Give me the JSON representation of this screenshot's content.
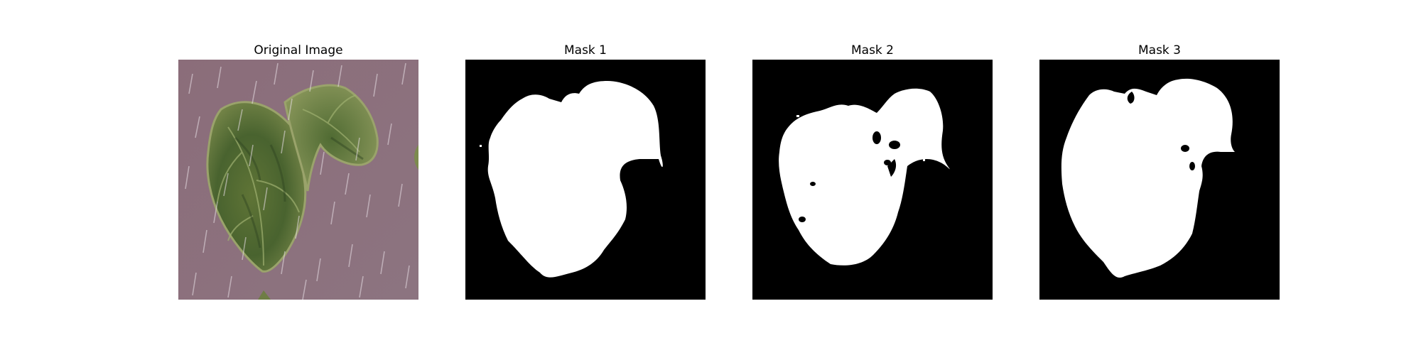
{
  "figure": {
    "panels": [
      {
        "title": "Original Image",
        "content": "leaf photograph"
      },
      {
        "title": "Mask 1",
        "content": "binary mask"
      },
      {
        "title": "Mask 2",
        "content": "binary mask"
      },
      {
        "title": "Mask 3",
        "content": "binary mask"
      }
    ]
  },
  "colors": {
    "background": "#ffffff",
    "mask_background": "#000000",
    "mask_foreground": "#ffffff",
    "photo_background": "#8a6d79",
    "leaf_dark": "#3f5a2b",
    "leaf_mid": "#6f8445",
    "leaf_light": "#a2aa6f"
  }
}
